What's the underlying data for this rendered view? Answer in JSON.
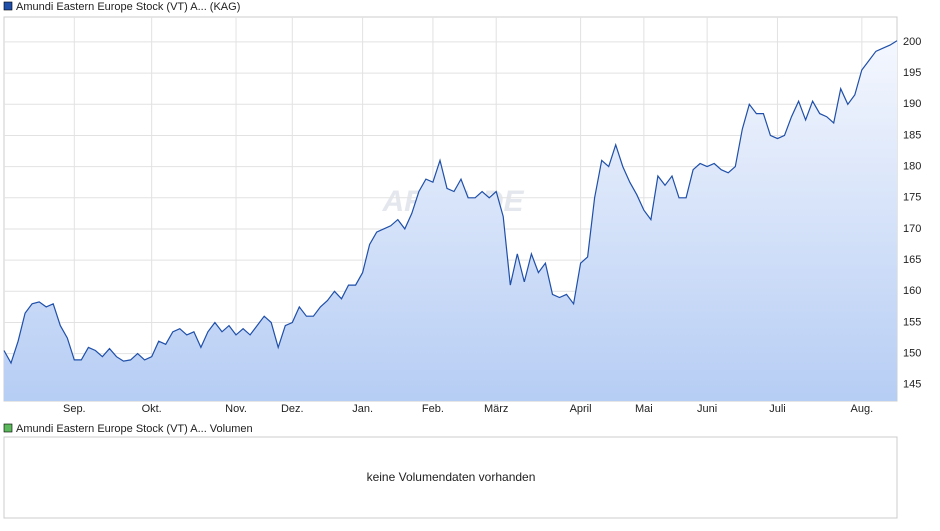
{
  "chart_data": {
    "type": "line",
    "categories": [
      null,
      null,
      null,
      null,
      null,
      null,
      null,
      null,
      null,
      null,
      "Sep.",
      null,
      null,
      null,
      null,
      null,
      null,
      null,
      null,
      null,
      null,
      "Okt.",
      null,
      null,
      null,
      null,
      null,
      null,
      null,
      null,
      null,
      null,
      null,
      "Nov.",
      null,
      null,
      null,
      null,
      null,
      null,
      null,
      "Dez.",
      null,
      null,
      null,
      null,
      null,
      null,
      null,
      null,
      null,
      "Jan.",
      null,
      null,
      null,
      null,
      null,
      null,
      null,
      null,
      null,
      "Feb.",
      null,
      null,
      null,
      null,
      null,
      null,
      null,
      null,
      "März",
      null,
      null,
      null,
      null,
      null,
      null,
      null,
      null,
      null,
      null,
      null,
      "April",
      null,
      null,
      null,
      null,
      null,
      null,
      null,
      null,
      "Mai",
      null,
      null,
      null,
      null,
      null,
      null,
      null,
      null,
      "Juni",
      null,
      null,
      null,
      null,
      null,
      null,
      null,
      null,
      null,
      "Juli",
      null,
      null,
      null,
      null,
      null,
      null,
      null,
      null,
      null,
      null,
      null,
      "Aug.",
      null,
      null,
      null,
      null,
      null
    ],
    "series": [
      {
        "name": "Amundi Eastern Europe Stock (VT) A... (KAG)",
        "color": "#1f4fa8",
        "values": [
          150.5,
          148.5,
          152,
          156.5,
          158,
          158.3,
          157.5,
          158,
          154.5,
          152.5,
          149,
          149,
          151,
          150.5,
          149.5,
          150.8,
          149.5,
          148.8,
          149,
          150,
          149,
          149.5,
          152,
          151.5,
          153.5,
          154,
          153,
          153.5,
          151,
          153.5,
          155,
          153.5,
          154.5,
          153,
          154,
          153,
          154.5,
          156,
          155,
          151,
          154.5,
          155,
          157.5,
          156,
          156,
          157.5,
          158.5,
          160,
          158.8,
          161,
          161,
          163,
          167.5,
          169.5,
          170,
          170.5,
          171.5,
          170,
          172.5,
          176,
          178,
          177.5,
          181,
          176.5,
          176,
          178,
          175,
          175,
          176,
          175,
          176,
          172,
          161,
          166,
          161.5,
          166,
          163,
          164.5,
          159.5,
          159,
          159.5,
          158,
          164.5,
          165.5,
          175,
          181,
          180,
          183.5,
          180,
          177.5,
          175.5,
          173,
          171.5,
          178.5,
          177,
          178.5,
          175,
          175,
          179.5,
          180.5,
          180,
          180.5,
          179.5,
          179,
          180,
          186,
          190,
          188.5,
          188.5,
          185,
          184.5,
          185,
          188,
          190.5,
          187.5,
          190.5,
          188.5,
          188,
          187,
          192.5,
          190,
          191.5,
          195.5,
          197,
          198.5,
          199,
          199.5,
          200.2
        ]
      }
    ],
    "ylim": [
      142.4,
      204
    ],
    "yticks": [
      145,
      150,
      155,
      160,
      165,
      170,
      175,
      180,
      185,
      190,
      195,
      200
    ],
    "grid": true,
    "watermark": "ARIVA.DE"
  },
  "volume_panel": {
    "legend": "Amundi Eastern Europe Stock (VT) A... Volumen",
    "color": "#5cb85c",
    "message": "keine Volumendaten vorhanden"
  }
}
